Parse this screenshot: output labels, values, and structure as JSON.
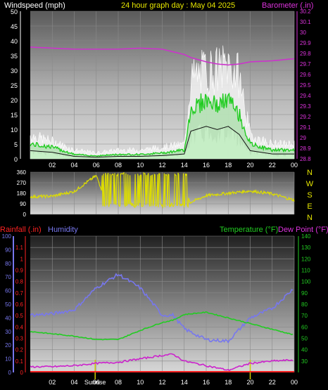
{
  "header": {
    "windspeed_label": "Windspeed (mph)",
    "title": "24 hour graph day : May 04 2025",
    "barometer_label": "Barometer (.in)"
  },
  "wind_dir": {
    "compass": [
      "N",
      "W",
      "S",
      "E",
      "N"
    ]
  },
  "bottom_header": {
    "rainfall_label": "Rainfall (.in)",
    "humidity_label": "Humidity",
    "temperature_label": "Temperature (°F)",
    "dewpoint_label": "Dew Point (°F)"
  },
  "colors": {
    "windspeed": "#ffffff",
    "gust": "#ffffff",
    "avg_wind": "#22cc22",
    "barometer": "#cc33cc",
    "wind_direction": "#dddd00",
    "rainfall": "#ff2222",
    "humidity": "#7777ee",
    "temperature": "#22cc22",
    "dew_point": "#cc22cc",
    "sun_marker": "#cccc00"
  },
  "chart_data": [
    {
      "type": "line",
      "panel": "wind-barometer",
      "x_ticks": [
        "02",
        "04",
        "06",
        "08",
        "10",
        "12",
        "14",
        "16",
        "18",
        "20",
        "22",
        "00"
      ],
      "y_left_ticks": [
        "0",
        "5",
        "10",
        "15",
        "20",
        "25",
        "30",
        "35",
        "40",
        "45",
        "50"
      ],
      "y_left_lim": [
        0,
        50
      ],
      "y_right_ticks": [
        "28.8",
        "28.9",
        "29",
        "29.1",
        "29.2",
        "29.3",
        "29.4",
        "29.5",
        "29.6",
        "29.7",
        "29.8",
        "29.9",
        "30",
        "30.1",
        "30.2"
      ],
      "y_right_lim": [
        28.8,
        30.2
      ],
      "x_hours": [
        0,
        2,
        4,
        6,
        8,
        10,
        12,
        14,
        14.6,
        16,
        17,
        18,
        19,
        20,
        22,
        24
      ],
      "series": [
        {
          "axis": "left",
          "values": [
            8,
            6,
            3,
            2,
            3,
            3,
            4,
            5,
            27,
            30,
            30,
            32,
            28,
            8,
            5,
            5
          ]
        },
        {
          "axis": "left",
          "values": [
            5,
            4,
            1.5,
            1,
            1.5,
            1.5,
            2,
            3,
            17,
            20,
            18,
            20,
            15,
            5,
            3,
            3
          ]
        },
        {
          "axis": "right",
          "values": [
            29.86,
            29.85,
            29.84,
            29.84,
            29.84,
            29.85,
            29.84,
            29.79,
            29.76,
            29.72,
            29.7,
            29.69,
            29.7,
            29.72,
            29.73,
            29.75
          ]
        }
      ]
    },
    {
      "type": "scatter",
      "panel": "wind-direction",
      "y_ticks": [
        "0",
        "90",
        "180",
        "270",
        "360"
      ],
      "y_lim": [
        0,
        360
      ],
      "x_hours": [
        0,
        2,
        4,
        5,
        6,
        7,
        8,
        9,
        10,
        11,
        12,
        13,
        14,
        14.5,
        16,
        18,
        20,
        22,
        24
      ],
      "values": [
        150,
        155,
        195,
        265,
        330,
        90,
        330,
        90,
        330,
        60,
        330,
        90,
        330,
        100,
        160,
        180,
        200,
        175,
        120
      ]
    },
    {
      "type": "line",
      "panel": "rain-humidity-temperature",
      "x_ticks": [
        "02",
        "04",
        "06",
        "08",
        "10",
        "12",
        "14",
        "16",
        "18",
        "20",
        "22",
        "00"
      ],
      "x_annotations": [
        "Sunrise"
      ],
      "y_rain_ticks": [
        "0",
        "0.1",
        "0.2",
        "0.3",
        "0.4",
        "0.5",
        "0.6",
        "0.7",
        "0.8",
        "0.9",
        "1",
        "1.1"
      ],
      "y_rain_lim": [
        0,
        1.2
      ],
      "y_humidity_ticks": [
        "0",
        "10",
        "20",
        "30",
        "40",
        "50",
        "60",
        "70",
        "80",
        "90",
        "100"
      ],
      "y_humidity_lim": [
        0,
        100
      ],
      "y_temp_ticks": [
        "30",
        "40",
        "50",
        "60",
        "70",
        "80",
        "90",
        "100",
        "110",
        "120",
        "130",
        "140"
      ],
      "y_temp_lim": [
        20,
        140
      ],
      "x_hours": [
        0,
        2,
        4,
        6,
        8,
        10,
        12,
        13,
        14,
        16,
        18,
        20,
        22,
        24
      ],
      "series": [
        {
          "axis": "humidity",
          "values": [
            42,
            43,
            46,
            62,
            72,
            62,
            42,
            42,
            32,
            24,
            23,
            40,
            47,
            62
          ]
        },
        {
          "axis": "temperature",
          "values": [
            56,
            54,
            52,
            49,
            49,
            57,
            64,
            66,
            71,
            73,
            68,
            63,
            58,
            53
          ]
        },
        {
          "axis": "temperature",
          "values": [
            25,
            25,
            26,
            28,
            29,
            32,
            35,
            36,
            30,
            26,
            22,
            28,
            30,
            31
          ]
        },
        {
          "axis": "rain",
          "values": [
            0,
            0,
            0,
            0,
            0,
            0,
            0,
            0,
            0,
            0,
            0,
            0,
            0,
            0
          ]
        }
      ],
      "markers_hours": [
        5.9,
        20
      ]
    }
  ]
}
